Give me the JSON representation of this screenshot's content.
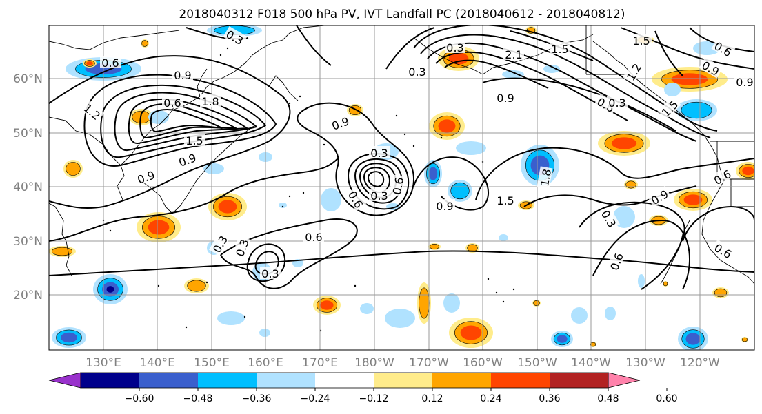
{
  "title": "2018040312 F018 500 hPa PV, IVT Landfall PC (2018040612 - 2018040812)",
  "lat_labels": [
    "60°N",
    "50°N",
    "40°N",
    "30°N",
    "20°N"
  ],
  "lon_labels": [
    "130°E",
    "140°E",
    "150°E",
    "160°E",
    "170°E",
    "180°W",
    "170°W",
    "160°W",
    "150°W",
    "140°W",
    "130°W",
    "120°W"
  ],
  "colorbar": {
    "colors": [
      "#9932CC",
      "#00008B",
      "#3A5FCD",
      "#00BFFF",
      "#B0E2FF",
      "#FFFFFF",
      "#FFEC8B",
      "#FFA500",
      "#FF4500",
      "#B22222",
      "#FF82AB"
    ],
    "tick_labels": [
      "−0.60",
      "−0.48",
      "−0.36",
      "−0.24",
      "−0.12",
      "0.12",
      "0.24",
      "0.36",
      "0.48",
      "0.60"
    ]
  },
  "contour_labels": [
    "0.3",
    "0.6",
    "2.1",
    "1.5",
    "1.5",
    "0.6",
    "0.9",
    "0.3",
    "1.2",
    "1.8",
    "0.9",
    "1.5",
    "0.9",
    "1.2",
    "1.5",
    "0.9",
    "0.6",
    "0.9",
    "0.3",
    "0.6",
    "0.3",
    "0.6",
    "1.8",
    "1.5",
    "0.9",
    "0.9",
    "0.3",
    "0.6",
    "0.6",
    "0.6",
    "0.3",
    "0.3",
    "0.3",
    "0.6",
    "0.9",
    "0.3",
    "0.9",
    "0.3",
    "0.6"
  ]
}
